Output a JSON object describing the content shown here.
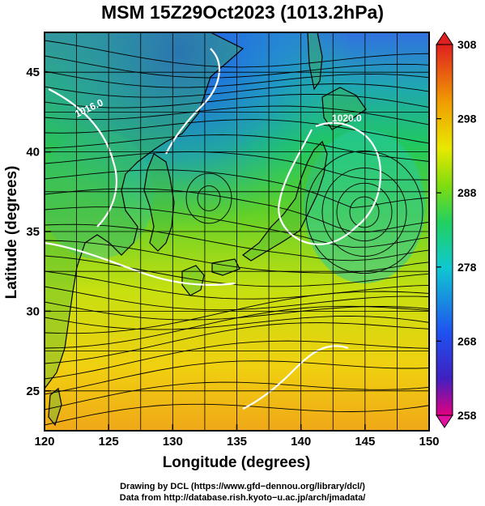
{
  "title": "MSM 15Z29Oct2023 (1013.2hPa)",
  "axes": {
    "xlabel": "Longitude (degrees)",
    "ylabel": "Latitude  (degrees)",
    "x_ticks": [
      "120",
      "125",
      "130",
      "135",
      "140",
      "145",
      "150"
    ],
    "y_ticks": [
      "25",
      "30",
      "35",
      "40",
      "45"
    ],
    "xlim": [
      120,
      150
    ],
    "ylim": [
      22.5,
      47.5
    ]
  },
  "colorbar": {
    "ticks": [
      "308",
      "298",
      "288",
      "278",
      "268",
      "258"
    ],
    "range": [
      258,
      308
    ],
    "colors": [
      "#e10080",
      "#2030e0",
      "#10b8d8",
      "#20d070",
      "#b0e000",
      "#f0e000",
      "#f08000",
      "#e83020"
    ]
  },
  "contour_labels": [
    "1020.0",
    "1016.0"
  ],
  "credits": {
    "line1": "Drawing by DCL (https://www.gfd−dennou.org/library/dcl/)",
    "line2": "Data from http://database.rish.kyoto−u.ac.jp/arch/jmadata/"
  },
  "colors": {
    "land_outline": "#000000",
    "isobar": "#ffffff",
    "streamline": "#000000"
  }
}
